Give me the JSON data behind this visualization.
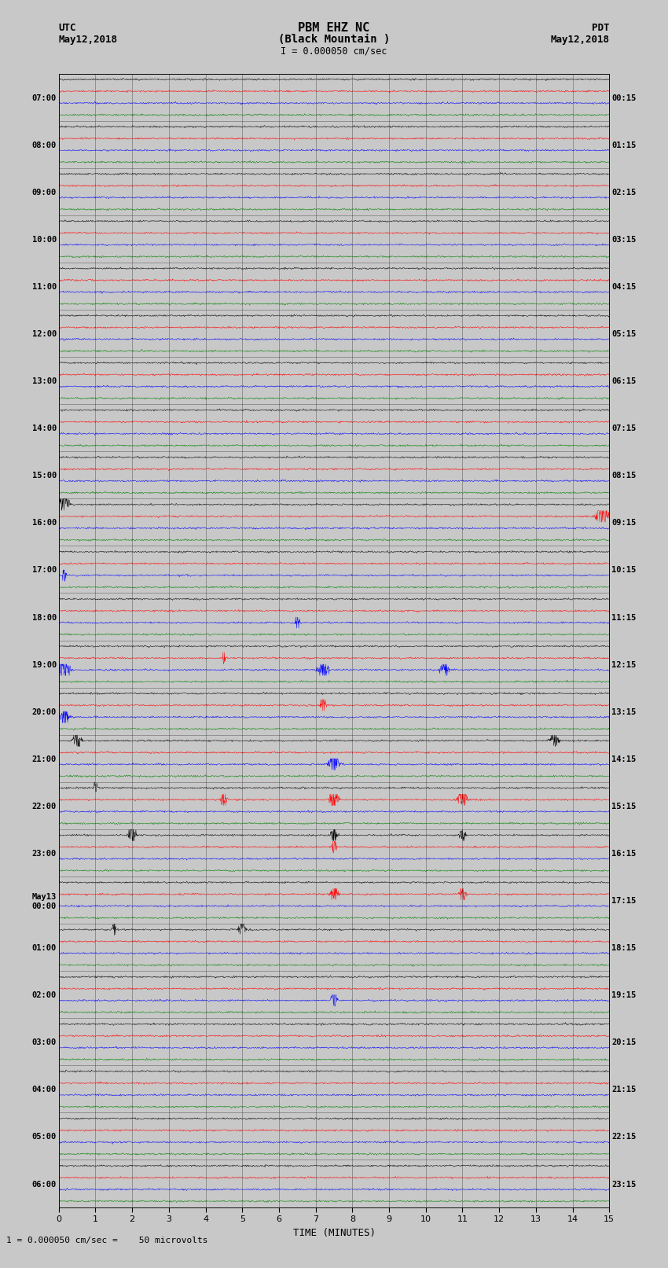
{
  "title_line1": "PBM EHZ NC",
  "title_line2": "(Black Mountain )",
  "scale_label": "I = 0.000050 cm/sec",
  "left_header": "UTC",
  "left_date": "May12,2018",
  "right_header": "PDT",
  "right_date": "May12,2018",
  "bottom_label": "TIME (MINUTES)",
  "bottom_note": "1 = 0.000050 cm/sec =    50 microvolts",
  "utc_labels": [
    "07:00",
    "08:00",
    "09:00",
    "10:00",
    "11:00",
    "12:00",
    "13:00",
    "14:00",
    "15:00",
    "16:00",
    "17:00",
    "18:00",
    "19:00",
    "20:00",
    "21:00",
    "22:00",
    "23:00",
    "May13\n00:00",
    "01:00",
    "02:00",
    "03:00",
    "04:00",
    "05:00",
    "06:00"
  ],
  "pdt_labels": [
    "00:15",
    "01:15",
    "02:15",
    "03:15",
    "04:15",
    "05:15",
    "06:15",
    "07:15",
    "08:15",
    "09:15",
    "10:15",
    "11:15",
    "12:15",
    "13:15",
    "14:15",
    "15:15",
    "16:15",
    "17:15",
    "18:15",
    "19:15",
    "20:15",
    "21:15",
    "22:15",
    "23:15"
  ],
  "n_rows": 24,
  "traces_per_row": 4,
  "colors": [
    "black",
    "red",
    "blue",
    "green"
  ],
  "bg_color": "#c8c8c8",
  "fig_width": 8.5,
  "fig_height": 16.13,
  "dpi": 100,
  "minutes": 15,
  "noise_amp": 0.012,
  "seed": 42
}
